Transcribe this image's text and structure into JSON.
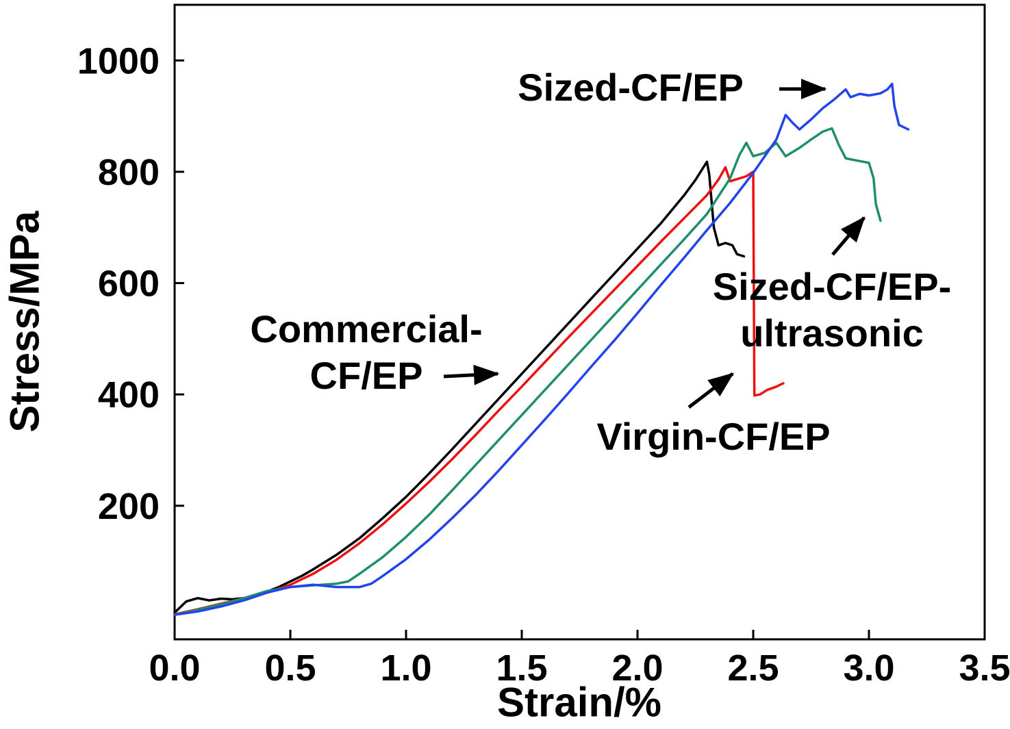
{
  "figure": {
    "background": "#ffffff",
    "frame_color": "#000000"
  },
  "chart_data": {
    "type": "line",
    "title": "",
    "xlabel": "Strain/%",
    "ylabel": "Stress/MPa",
    "xlim": [
      0,
      3.5
    ],
    "ylim": [
      -40,
      1100
    ],
    "grid": false,
    "legend": "none",
    "x_ticks": [
      0.0,
      0.5,
      1.0,
      1.5,
      2.0,
      2.5,
      3.0,
      3.5
    ],
    "x_tick_labels": [
      "0.0",
      "0.5",
      "1.0",
      "1.5",
      "2.0",
      "2.5",
      "3.0",
      "3.5"
    ],
    "y_ticks": [
      200,
      400,
      600,
      800,
      1000
    ],
    "y_tick_labels": [
      "200",
      "400",
      "600",
      "800",
      "1000"
    ],
    "series": [
      {
        "name": "Commercial-CF/EP",
        "color": "#000000",
        "points": [
          [
            0.0,
            8
          ],
          [
            0.05,
            28
          ],
          [
            0.1,
            34
          ],
          [
            0.15,
            30
          ],
          [
            0.2,
            33
          ],
          [
            0.25,
            32
          ],
          [
            0.3,
            34
          ],
          [
            0.35,
            38
          ],
          [
            0.4,
            46
          ],
          [
            0.45,
            54
          ],
          [
            0.5,
            64
          ],
          [
            0.55,
            74
          ],
          [
            0.6,
            86
          ],
          [
            0.7,
            112
          ],
          [
            0.8,
            142
          ],
          [
            0.9,
            178
          ],
          [
            1.0,
            216
          ],
          [
            1.1,
            258
          ],
          [
            1.2,
            302
          ],
          [
            1.3,
            347
          ],
          [
            1.4,
            392
          ],
          [
            1.5,
            437
          ],
          [
            1.6,
            482
          ],
          [
            1.7,
            527
          ],
          [
            1.8,
            572
          ],
          [
            1.9,
            617
          ],
          [
            2.0,
            662
          ],
          [
            2.1,
            707
          ],
          [
            2.2,
            757
          ],
          [
            2.25,
            785
          ],
          [
            2.3,
            818
          ],
          [
            2.31,
            795
          ],
          [
            2.33,
            700
          ],
          [
            2.35,
            668
          ],
          [
            2.38,
            672
          ],
          [
            2.41,
            668
          ],
          [
            2.43,
            652
          ],
          [
            2.46,
            648
          ]
        ]
      },
      {
        "name": "Virgin-CF/EP",
        "color": "#ee1111",
        "points": [
          [
            0.0,
            5
          ],
          [
            0.1,
            14
          ],
          [
            0.2,
            24
          ],
          [
            0.3,
            34
          ],
          [
            0.4,
            44
          ],
          [
            0.5,
            58
          ],
          [
            0.6,
            78
          ],
          [
            0.7,
            103
          ],
          [
            0.8,
            133
          ],
          [
            0.9,
            167
          ],
          [
            1.0,
            204
          ],
          [
            1.1,
            243
          ],
          [
            1.2,
            284
          ],
          [
            1.3,
            327
          ],
          [
            1.4,
            371
          ],
          [
            1.5,
            414
          ],
          [
            1.6,
            458
          ],
          [
            1.7,
            502
          ],
          [
            1.8,
            545
          ],
          [
            1.9,
            588
          ],
          [
            2.0,
            631
          ],
          [
            2.1,
            674
          ],
          [
            2.2,
            716
          ],
          [
            2.3,
            758
          ],
          [
            2.35,
            786
          ],
          [
            2.38,
            808
          ],
          [
            2.4,
            783
          ],
          [
            2.44,
            788
          ],
          [
            2.47,
            792
          ],
          [
            2.5,
            800
          ],
          [
            2.505,
            398
          ],
          [
            2.53,
            400
          ],
          [
            2.56,
            408
          ],
          [
            2.6,
            414
          ],
          [
            2.63,
            420
          ]
        ]
      },
      {
        "name": "Sized-CF/EP-ultrasonic",
        "color": "#1f8f6b",
        "points": [
          [
            0.0,
            4
          ],
          [
            0.1,
            13
          ],
          [
            0.2,
            23
          ],
          [
            0.3,
            34
          ],
          [
            0.4,
            47
          ],
          [
            0.5,
            54
          ],
          [
            0.6,
            57
          ],
          [
            0.7,
            60
          ],
          [
            0.75,
            64
          ],
          [
            0.8,
            78
          ],
          [
            0.9,
            108
          ],
          [
            1.0,
            144
          ],
          [
            1.1,
            184
          ],
          [
            1.2,
            228
          ],
          [
            1.3,
            273
          ],
          [
            1.4,
            318
          ],
          [
            1.5,
            363
          ],
          [
            1.6,
            408
          ],
          [
            1.7,
            453
          ],
          [
            1.8,
            498
          ],
          [
            1.9,
            543
          ],
          [
            2.0,
            588
          ],
          [
            2.1,
            633
          ],
          [
            2.2,
            678
          ],
          [
            2.3,
            724
          ],
          [
            2.4,
            788
          ],
          [
            2.44,
            830
          ],
          [
            2.47,
            852
          ],
          [
            2.5,
            828
          ],
          [
            2.55,
            834
          ],
          [
            2.6,
            852
          ],
          [
            2.64,
            828
          ],
          [
            2.7,
            843
          ],
          [
            2.75,
            858
          ],
          [
            2.8,
            872
          ],
          [
            2.84,
            878
          ],
          [
            2.87,
            848
          ],
          [
            2.9,
            824
          ],
          [
            2.95,
            820
          ],
          [
            3.0,
            816
          ],
          [
            3.02,
            788
          ],
          [
            3.03,
            742
          ],
          [
            3.05,
            712
          ]
        ]
      },
      {
        "name": "Sized-CF/EP",
        "color": "#2244ee",
        "points": [
          [
            0.0,
            4
          ],
          [
            0.1,
            10
          ],
          [
            0.2,
            19
          ],
          [
            0.3,
            30
          ],
          [
            0.4,
            44
          ],
          [
            0.5,
            54
          ],
          [
            0.6,
            58
          ],
          [
            0.7,
            54
          ],
          [
            0.8,
            54
          ],
          [
            0.85,
            60
          ],
          [
            0.9,
            74
          ],
          [
            1.0,
            104
          ],
          [
            1.1,
            139
          ],
          [
            1.2,
            178
          ],
          [
            1.3,
            219
          ],
          [
            1.4,
            263
          ],
          [
            1.5,
            309
          ],
          [
            1.6,
            355
          ],
          [
            1.7,
            402
          ],
          [
            1.8,
            450
          ],
          [
            1.9,
            497
          ],
          [
            2.0,
            546
          ],
          [
            2.1,
            596
          ],
          [
            2.2,
            645
          ],
          [
            2.3,
            695
          ],
          [
            2.4,
            744
          ],
          [
            2.5,
            798
          ],
          [
            2.6,
            858
          ],
          [
            2.64,
            902
          ],
          [
            2.67,
            888
          ],
          [
            2.7,
            876
          ],
          [
            2.75,
            894
          ],
          [
            2.8,
            914
          ],
          [
            2.85,
            930
          ],
          [
            2.9,
            948
          ],
          [
            2.92,
            934
          ],
          [
            2.96,
            940
          ],
          [
            3.0,
            937
          ],
          [
            3.05,
            941
          ],
          [
            3.08,
            948
          ],
          [
            3.1,
            958
          ],
          [
            3.11,
            918
          ],
          [
            3.13,
            884
          ],
          [
            3.17,
            876
          ]
        ]
      }
    ],
    "annotations": [
      {
        "id": "sized-cf-ep",
        "lines": [
          "Sized-CF/EP"
        ],
        "target_series": "Sized-CF/EP",
        "arrow_direction": "right"
      },
      {
        "id": "commercial-cf-ep",
        "lines": [
          "Commercial-",
          "CF/EP"
        ],
        "target_series": "Commercial-CF/EP",
        "arrow_direction": "right"
      },
      {
        "id": "sized-cf-ep-ultrasonic",
        "lines": [
          "Sized-CF/EP-",
          "ultrasonic"
        ],
        "target_series": "Sized-CF/EP-ultrasonic",
        "arrow_direction": "up-right"
      },
      {
        "id": "virgin-cf-ep",
        "lines": [
          "Virgin-CF/EP"
        ],
        "target_series": "Virgin-CF/EP",
        "arrow_direction": "up-right"
      }
    ]
  }
}
